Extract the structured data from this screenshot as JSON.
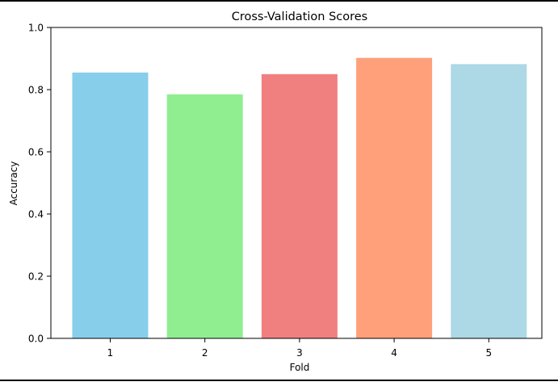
{
  "chart_data": {
    "type": "bar",
    "title": "Cross-Validation Scores",
    "xlabel": "Fold",
    "ylabel": "Accuracy",
    "categories": [
      "1",
      "2",
      "3",
      "4",
      "5"
    ],
    "values": [
      0.855,
      0.785,
      0.85,
      0.902,
      0.882
    ],
    "colors": [
      "#87ceeb",
      "#90ee90",
      "#f08080",
      "#ffa07a",
      "#add8e6"
    ],
    "ylim": [
      0,
      1.0
    ],
    "yticks": [
      "0.0",
      "0.2",
      "0.4",
      "0.6",
      "0.8",
      "1.0"
    ],
    "grid": false,
    "legend": "none"
  }
}
